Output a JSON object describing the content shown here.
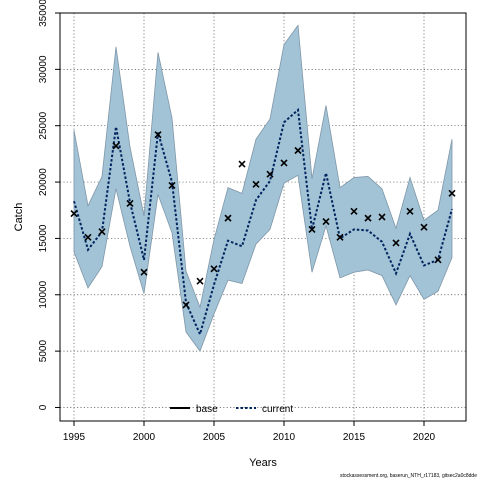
{
  "chart_data": {
    "type": "line",
    "xlabel": "Years",
    "ylabel": "Catch",
    "xlim": [
      1994.0,
      2023.0
    ],
    "ylim": [
      -1200,
      35000
    ],
    "x_ticks": [
      1995,
      2000,
      2005,
      2010,
      2015,
      2020
    ],
    "y_ticks": [
      0,
      5000,
      10000,
      15000,
      20000,
      25000,
      30000,
      35000
    ],
    "grid": true,
    "legend_position": "bottom",
    "legend": [
      {
        "label": "base",
        "color": "#000000",
        "dash": "solid"
      },
      {
        "label": "current",
        "color": "#00245e",
        "dash": "dotted"
      }
    ],
    "footer": "stockassessment.org, baserun_NTH_r17183, gitsec2a0c8dde",
    "colors": {
      "band": "#a2c2d6",
      "band_edge": "#7f97a8",
      "line": "#00245e",
      "points": "#000000"
    },
    "x": [
      1995,
      1996,
      1997,
      1998,
      1999,
      2000,
      2001,
      2002,
      2003,
      2004,
      2005,
      2006,
      2007,
      2008,
      2009,
      2010,
      2011,
      2012,
      2013,
      2014,
      2015,
      2016,
      2017,
      2018,
      2019,
      2020,
      2021,
      2022
    ],
    "series": [
      {
        "name": "current",
        "style": "line",
        "values": [
          18300,
          14000,
          15600,
          24900,
          18200,
          13100,
          24400,
          20000,
          9300,
          6500,
          10900,
          14800,
          14300,
          18400,
          20100,
          25300,
          26400,
          15800,
          20800,
          15000,
          15800,
          15700,
          14700,
          11900,
          15400,
          12600,
          13100,
          17600
        ]
      },
      {
        "name": "upper",
        "style": "band-upper",
        "values": [
          24600,
          17900,
          20500,
          32000,
          23100,
          17000,
          31500,
          25700,
          12100,
          8900,
          14900,
          19500,
          19000,
          23800,
          25600,
          32200,
          33900,
          20300,
          26800,
          19500,
          20400,
          20500,
          19400,
          15900,
          20400,
          16600,
          17500,
          23800
        ]
      },
      {
        "name": "lower",
        "style": "band-lower",
        "values": [
          13800,
          10600,
          12500,
          19400,
          14300,
          10100,
          18900,
          15500,
          6700,
          5000,
          8300,
          11300,
          11000,
          14500,
          15800,
          19900,
          20600,
          12000,
          16100,
          11500,
          12000,
          12200,
          11700,
          9100,
          11700,
          9600,
          10300,
          13300
        ]
      },
      {
        "name": "observed",
        "style": "points",
        "values": [
          17200,
          15100,
          15600,
          23200,
          18100,
          12000,
          24200,
          19700,
          9100,
          11200,
          12300,
          16800,
          21600,
          19800,
          20700,
          21700,
          22800,
          15800,
          16500,
          15100,
          17400,
          16800,
          16900,
          14600,
          17400,
          16000,
          13100,
          19000
        ]
      }
    ]
  }
}
